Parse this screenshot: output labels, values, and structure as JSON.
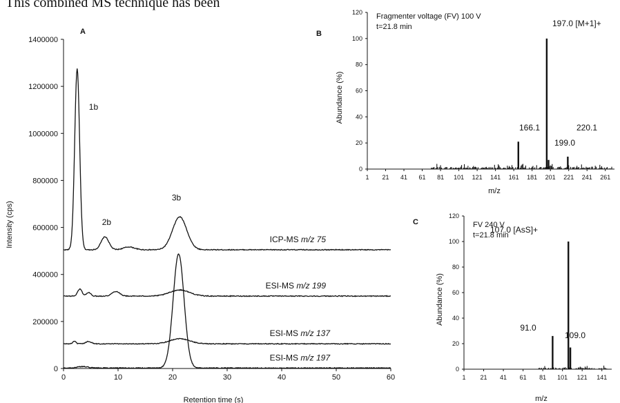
{
  "snippet_text": "This combined MS technique has been",
  "chart_data": [
    {
      "panel": "A",
      "type": "line",
      "xlabel": "Retention time (s)",
      "ylabel": "Intensity (cps)",
      "xlim": [
        0,
        60
      ],
      "ylim": [
        0,
        1400000
      ],
      "xticks": [
        "0",
        "10",
        "20",
        "30",
        "40",
        "50",
        "60"
      ],
      "yticks": [
        "0",
        "200000",
        "400000",
        "600000",
        "800000",
        "1000000",
        "1200000",
        "1400000"
      ],
      "series": [
        {
          "name": "ICP-MS m/z 75",
          "label_prefix": "ICP-MS ",
          "label_mz": "m/z 75",
          "baseline": 505000,
          "peaks": [
            {
              "center": 2.5,
              "height": 770000,
              "width": 0.45
            },
            {
              "center": 7.6,
              "height": 55000,
              "width": 0.7
            },
            {
              "center": 12.0,
              "height": 12000,
              "width": 1.0
            },
            {
              "center": 21.3,
              "height": 140000,
              "width": 1.3
            }
          ]
        },
        {
          "name": "ESI-MS m/z 199",
          "label_prefix": "ESI-MS ",
          "label_mz": "m/z 199",
          "baseline": 308000,
          "peaks": [
            {
              "center": 3.0,
              "height": 30000,
              "width": 0.4
            },
            {
              "center": 4.6,
              "height": 15000,
              "width": 0.4
            },
            {
              "center": 9.6,
              "height": 20000,
              "width": 0.7
            },
            {
              "center": 21.3,
              "height": 26000,
              "width": 1.8
            }
          ]
        },
        {
          "name": "ESI-MS m/z 137",
          "label_prefix": "ESI-MS ",
          "label_mz": "m/z 137",
          "baseline": 105000,
          "peaks": [
            {
              "center": 2.0,
              "height": 10000,
              "width": 0.3
            },
            {
              "center": 4.6,
              "height": 10000,
              "width": 0.5
            },
            {
              "center": 21.3,
              "height": 22000,
              "width": 1.8
            }
          ]
        },
        {
          "name": "ESI-MS m/z 197",
          "label_prefix": "ESI-MS ",
          "label_mz": "m/z 197",
          "baseline": 2000,
          "peaks": [
            {
              "center": 3.5,
              "height": 6000,
              "width": 1.0
            },
            {
              "center": 21.1,
              "height": 485000,
              "width": 1.0
            }
          ]
        }
      ],
      "annotations": [
        {
          "text": "1b",
          "x": 5.5,
          "y": 1100000
        },
        {
          "text": "2b",
          "x": 7.9,
          "y": 610000
        },
        {
          "text": "3b",
          "x": 20.7,
          "y": 715000
        }
      ]
    },
    {
      "panel": "B",
      "type": "bar",
      "title_lines": [
        "Fragmenter voltage (FV) 100 V",
        "t=21.8 min"
      ],
      "xlabel": "m/z",
      "ylabel": "Abundance (%)",
      "xlim": [
        1,
        271
      ],
      "ylim": [
        0,
        120
      ],
      "xticks": [
        "1",
        "21",
        "41",
        "61",
        "81",
        "101",
        "121",
        "141",
        "161",
        "181",
        "201",
        "221",
        "241",
        "261"
      ],
      "yticks": [
        "0",
        "20",
        "40",
        "60",
        "80",
        "100",
        "120"
      ],
      "peaks": [
        {
          "mz": 197,
          "abundance": 100,
          "label": "197.0 [M+1]+"
        },
        {
          "mz": 166,
          "abundance": 21,
          "label": "166.1"
        },
        {
          "mz": 220,
          "abundance": 9.5,
          "label": "220.1"
        },
        {
          "mz": 199,
          "abundance": 7,
          "label": "199.0"
        }
      ],
      "noise_range": [
        71,
        268
      ],
      "noise_max": 4
    },
    {
      "panel": "C",
      "type": "bar",
      "title_lines": [
        "FV 240 V",
        "t=21.8 min"
      ],
      "xlabel": "m/z",
      "ylabel": "Abundance (%)",
      "xlim": [
        1,
        151
      ],
      "ylim": [
        0,
        120
      ],
      "xticks": [
        "1",
        "21",
        "41",
        "61",
        "81",
        "101",
        "121",
        "141"
      ],
      "yticks": [
        "0",
        "20",
        "40",
        "60",
        "80",
        "100",
        "120"
      ],
      "peaks": [
        {
          "mz": 107,
          "abundance": 100,
          "label": "107.0 [AsS]+"
        },
        {
          "mz": 91,
          "abundance": 26,
          "label": "91.0"
        },
        {
          "mz": 109,
          "abundance": 17,
          "label": "109.0"
        }
      ],
      "noise_range": [
        77,
        146
      ],
      "noise_max": 3
    }
  ]
}
